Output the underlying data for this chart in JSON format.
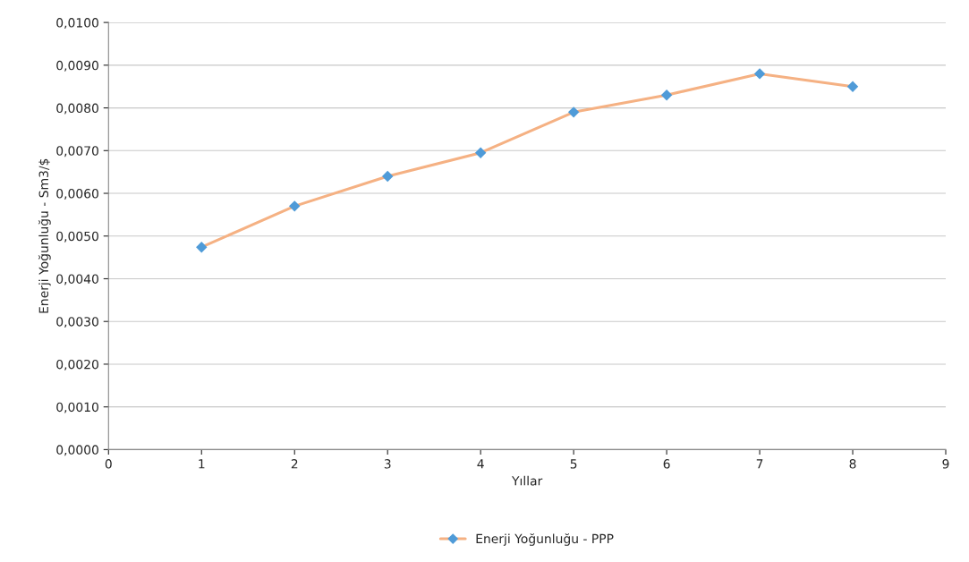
{
  "chart_data": {
    "type": "line",
    "xlabel": "Yıllar",
    "ylabel": "Enerji Yoğunluğu - Sm3/$",
    "x": [
      1,
      2,
      3,
      4,
      5,
      6,
      7,
      8
    ],
    "series": [
      {
        "name": "Enerji Yoğunluğu - PPP",
        "color": "#f5b183",
        "colors": [
          "#4f9bd8",
          "#4f9bd8",
          "#4f9bd8",
          "#4f9bd8",
          "#4f9bd8",
          "#4f9bd8",
          "#4f9bd8",
          "#4f9bd8"
        ],
        "values": [
          0.00474,
          0.0057,
          0.0064,
          0.00695,
          0.0079,
          0.0083,
          0.0088,
          0.0085
        ]
      }
    ],
    "xlim": [
      0,
      9
    ],
    "xticks": [
      0,
      1,
      2,
      3,
      4,
      5,
      6,
      7,
      8,
      9
    ],
    "ylim": [
      0,
      0.01
    ],
    "yticks": [
      {
        "value": 0,
        "label": "0,0000"
      },
      {
        "value": 0.001,
        "label": "0,0010"
      },
      {
        "value": 0.002,
        "label": "0,0020"
      },
      {
        "value": 0.003,
        "label": "0,0030"
      },
      {
        "value": 0.004,
        "label": "0,0040"
      },
      {
        "value": 0.005,
        "label": "0,0050"
      },
      {
        "value": 0.006,
        "label": "0,0060"
      },
      {
        "value": 0.007,
        "label": "0,0070"
      },
      {
        "value": 0.008,
        "label": "0,0080"
      },
      {
        "value": 0.009,
        "label": "0,0090"
      },
      {
        "value": 0.01,
        "label": "0,0100"
      }
    ],
    "grid": "y",
    "legend": "bottom",
    "marker": "diamond",
    "line_style": "solid"
  }
}
